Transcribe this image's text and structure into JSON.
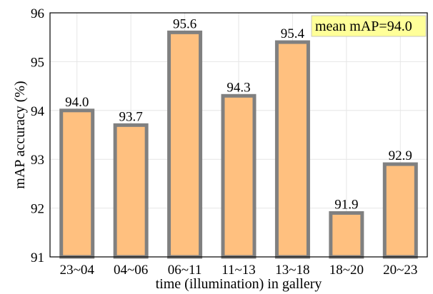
{
  "chart_data": {
    "type": "bar",
    "categories": [
      "23~04",
      "04~06",
      "06~11",
      "11~13",
      "13~18",
      "18~20",
      "20~23"
    ],
    "values": [
      94.0,
      93.7,
      95.6,
      94.3,
      95.4,
      91.9,
      92.9
    ],
    "data_labels": [
      "94.0",
      "93.7",
      "95.6",
      "94.3",
      "95.4",
      "91.9",
      "92.9"
    ],
    "title": "",
    "xlabel": "time (illumination) in gallery",
    "ylabel": "mAP accuracy (%)",
    "ylim": [
      91,
      96
    ],
    "yticks": [
      91,
      92,
      93,
      94,
      95,
      96
    ],
    "grid": true,
    "annotation": "mean mAP=94.0",
    "colors": {
      "bar_fill": "#FFC07F",
      "bar_edge": "#808080",
      "annotation_bg": "#FFFF99",
      "grid": "#E6E6E6",
      "axis": "#000000"
    }
  }
}
